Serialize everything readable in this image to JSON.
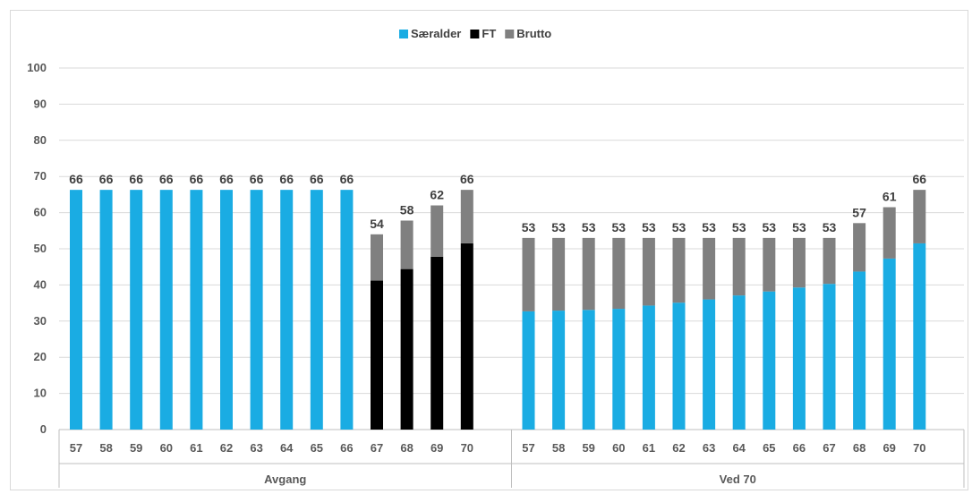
{
  "chart_data": {
    "type": "bar",
    "stacked": true,
    "ylim": [
      0,
      100
    ],
    "yticks": [
      0,
      10,
      20,
      30,
      40,
      50,
      60,
      70,
      80,
      90,
      100
    ],
    "grid": true,
    "legend_position": "top-center",
    "colors": {
      "Særalder": "#1aace3",
      "FT": "#000000",
      "Brutto": "#808080"
    },
    "series_names": [
      "Særalder",
      "FT",
      "Brutto"
    ],
    "groups": [
      {
        "label": "Avgang",
        "categories": [
          "57",
          "58",
          "59",
          "60",
          "61",
          "62",
          "63",
          "64",
          "65",
          "66",
          "67",
          "68",
          "69",
          "70"
        ],
        "series": [
          {
            "name": "Særalder",
            "values": [
              66.3,
              66.3,
              66.3,
              66.3,
              66.3,
              66.3,
              66.3,
              66.3,
              66.3,
              66.3,
              0,
              0,
              0,
              0
            ]
          },
          {
            "name": "FT",
            "values": [
              0,
              0,
              0,
              0,
              0,
              0,
              0,
              0,
              0,
              0,
              41.2,
              44.4,
              47.8,
              51.5
            ]
          },
          {
            "name": "Brutto",
            "values": [
              0,
              0,
              0,
              0,
              0,
              0,
              0,
              0,
              0,
              0,
              12.8,
              13.4,
              14.2,
              14.8
            ]
          }
        ],
        "totals": [
          "66",
          "66",
          "66",
          "66",
          "66",
          "66",
          "66",
          "66",
          "66",
          "66",
          "54",
          "58",
          "62",
          "66"
        ]
      },
      {
        "label": "Ved 70",
        "categories": [
          "57",
          "58",
          "59",
          "60",
          "61",
          "62",
          "63",
          "64",
          "65",
          "66",
          "67",
          "68",
          "69",
          "70"
        ],
        "series": [
          {
            "name": "Særalder",
            "values": [
              32.7,
              32.9,
              33.1,
              33.4,
              34.3,
              35.1,
              36.0,
              37.1,
              38.2,
              39.3,
              40.3,
              43.7,
              47.3,
              51.5
            ]
          },
          {
            "name": "FT",
            "values": [
              0,
              0,
              0,
              0,
              0,
              0,
              0,
              0,
              0,
              0,
              0,
              0,
              0,
              0
            ]
          },
          {
            "name": "Brutto",
            "values": [
              20.3,
              20.1,
              19.9,
              19.6,
              18.7,
              17.9,
              17.0,
              15.9,
              14.8,
              13.7,
              12.7,
              13.4,
              14.2,
              14.8
            ]
          }
        ],
        "totals": [
          "53",
          "53",
          "53",
          "53",
          "53",
          "53",
          "53",
          "53",
          "53",
          "53",
          "53",
          "57",
          "61",
          "66"
        ]
      }
    ]
  }
}
